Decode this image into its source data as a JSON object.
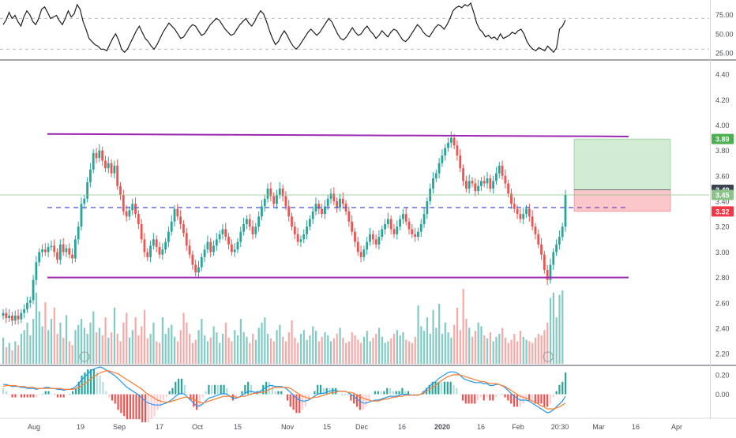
{
  "chart_data": [
    {
      "type": "line",
      "panel": "rsi",
      "ylim": [
        18,
        92
      ],
      "y_ticks": [
        "75.00",
        "50.00",
        "25.00"
      ],
      "y_tick_values": [
        75,
        50,
        25
      ],
      "reference_levels": [
        70,
        30
      ],
      "series": [
        {
          "values": [
            62,
            68,
            78,
            70,
            74,
            66,
            60,
            72,
            80,
            75,
            66,
            62,
            70,
            82,
            85,
            78,
            70,
            72,
            74,
            67,
            62,
            70,
            80,
            72,
            76,
            88,
            82,
            66,
            56,
            44,
            40,
            36,
            34,
            30,
            30,
            28,
            36,
            44,
            50,
            42,
            30,
            26,
            30,
            38,
            46,
            54,
            60,
            52,
            44,
            40,
            34,
            30,
            36,
            44,
            52,
            58,
            64,
            60,
            56,
            50,
            44,
            46,
            52,
            58,
            62,
            60,
            54,
            48,
            50,
            56,
            62,
            66,
            70,
            68,
            62,
            56,
            52,
            48,
            50,
            56,
            62,
            66,
            70,
            64,
            60,
            66,
            74,
            80,
            76,
            66,
            54,
            44,
            36,
            40,
            48,
            54,
            48,
            40,
            34,
            30,
            34,
            40,
            46,
            52,
            56,
            52,
            48,
            52,
            58,
            64,
            70,
            66,
            58,
            50,
            44,
            42,
            46,
            52,
            58,
            52,
            48,
            50,
            56,
            60,
            54,
            50,
            44,
            48,
            54,
            50,
            46,
            52,
            56,
            54,
            48,
            42,
            40,
            44,
            50,
            56,
            62,
            58,
            52,
            48,
            46,
            52,
            58,
            62,
            60,
            56,
            62,
            70,
            80,
            84,
            86,
            84,
            88,
            86,
            90,
            78,
            64,
            56,
            52,
            46,
            48,
            44,
            46,
            42,
            50,
            44,
            46,
            48,
            52,
            50,
            54,
            56,
            50,
            40,
            34,
            30,
            28,
            32,
            30,
            28,
            34,
            30,
            26,
            32,
            56,
            60,
            68
          ]
        }
      ]
    },
    {
      "type": "bar",
      "panel": "price",
      "ylim": [
        2.12,
        4.5
      ],
      "y_ticks": [
        "4.40",
        "4.20",
        "4.00",
        "3.80",
        "3.60",
        "3.40",
        "3.20",
        "3.00",
        "2.80",
        "2.60",
        "2.40",
        "2.20"
      ],
      "y_tick_values": [
        4.4,
        4.2,
        4.0,
        3.8,
        3.6,
        3.4,
        3.2,
        3.0,
        2.8,
        2.6,
        2.4,
        2.2
      ],
      "x_ticks": [
        "Aug",
        "19",
        "Sep",
        "17",
        "Oct",
        "15",
        "Nov",
        "15",
        "Dec",
        "16",
        "2020",
        "16",
        "Feb",
        "20:30",
        "Mar",
        "16",
        "Apr"
      ],
      "price_labels": [
        {
          "text": "3.89",
          "value": 3.89,
          "color": "#4caf50"
        },
        {
          "text": "3.49",
          "value": 3.49,
          "color": "#3d4451"
        },
        {
          "text": "3.45",
          "value": 3.45,
          "color": "#8bc48a"
        },
        {
          "text": "3.32",
          "value": 3.32,
          "color": "#f23645"
        }
      ],
      "channel": {
        "top": 3.93,
        "bottom": 2.8,
        "mid": 3.35
      },
      "position": {
        "entry": 3.49,
        "target": 3.89,
        "stop": 3.32
      },
      "last_price": 3.45,
      "up_color": "#26a69a",
      "down_color": "#ef5350",
      "close": [
        2.52,
        2.48,
        2.5,
        2.46,
        2.5,
        2.47,
        2.52,
        2.55,
        2.6,
        2.62,
        2.78,
        2.92,
        3.0,
        3.02,
        3.0,
        3.04,
        3.05,
        3.0,
        2.94,
        3.06,
        3.0,
        3.03,
        2.98,
        2.95,
        3.1,
        3.2,
        3.38,
        3.42,
        3.55,
        3.65,
        3.78,
        3.74,
        3.8,
        3.72,
        3.66,
        3.7,
        3.62,
        3.68,
        3.52,
        3.45,
        3.32,
        3.28,
        3.33,
        3.38,
        3.3,
        3.22,
        3.1,
        3.0,
        2.96,
        3.05,
        3.1,
        3.04,
        2.98,
        3.02,
        3.08,
        3.16,
        3.24,
        3.34,
        3.28,
        3.22,
        3.15,
        3.05,
        2.98,
        2.9,
        2.84,
        2.88,
        2.96,
        3.02,
        3.08,
        3.0,
        3.05,
        3.1,
        3.14,
        3.18,
        3.12,
        3.06,
        3.0,
        3.02,
        3.08,
        3.16,
        3.22,
        3.26,
        3.2,
        3.14,
        3.2,
        3.28,
        3.36,
        3.42,
        3.5,
        3.44,
        3.38,
        3.45,
        3.5,
        3.44,
        3.36,
        3.28,
        3.2,
        3.14,
        3.08,
        3.1,
        3.14,
        3.2,
        3.26,
        3.32,
        3.38,
        3.34,
        3.3,
        3.36,
        3.42,
        3.46,
        3.4,
        3.35,
        3.42,
        3.38,
        3.32,
        3.24,
        3.16,
        3.08,
        3.0,
        2.96,
        3.02,
        3.08,
        3.14,
        3.1,
        3.06,
        3.12,
        3.18,
        3.22,
        3.26,
        3.18,
        3.14,
        3.2,
        3.26,
        3.3,
        3.24,
        3.18,
        3.14,
        3.12,
        3.16,
        3.22,
        3.3,
        3.4,
        3.5,
        3.58,
        3.62,
        3.7,
        3.76,
        3.82,
        3.86,
        3.9,
        3.84,
        3.76,
        3.66,
        3.56,
        3.5,
        3.56,
        3.54,
        3.48,
        3.52,
        3.56,
        3.54,
        3.58,
        3.5,
        3.56,
        3.62,
        3.68,
        3.6,
        3.54,
        3.46,
        3.38,
        3.34,
        3.3,
        3.26,
        3.3,
        3.34,
        3.28,
        3.2,
        3.14,
        3.06,
        2.98,
        2.86,
        2.78,
        2.9,
        3.0,
        3.06,
        3.12,
        3.2,
        3.45
      ]
    },
    {
      "type": "bar",
      "panel": "volume",
      "values": [
        0.35,
        0.22,
        0.28,
        0.18,
        0.3,
        0.25,
        0.4,
        0.45,
        0.55,
        0.38,
        0.6,
        0.95,
        0.7,
        0.5,
        0.82,
        0.45,
        0.6,
        0.75,
        0.4,
        0.55,
        0.35,
        0.65,
        0.3,
        0.25,
        0.45,
        0.52,
        0.6,
        0.48,
        0.4,
        0.55,
        0.7,
        0.42,
        0.48,
        0.38,
        0.62,
        0.35,
        0.42,
        0.75,
        0.4,
        0.3,
        0.55,
        0.68,
        0.35,
        0.45,
        0.62,
        0.38,
        0.5,
        0.72,
        0.34,
        0.4,
        0.55,
        0.3,
        0.28,
        0.62,
        0.4,
        0.48,
        0.52,
        0.36,
        0.3,
        0.45,
        0.68,
        0.55,
        0.4,
        0.28,
        0.32,
        0.45,
        0.6,
        0.38,
        0.3,
        0.35,
        0.5,
        0.42,
        0.28,
        0.4,
        0.55,
        0.35,
        0.3,
        0.45,
        0.38,
        0.6,
        0.42,
        0.36,
        0.28,
        0.4,
        0.32,
        0.48,
        0.55,
        0.62,
        0.4,
        0.34,
        0.3,
        0.45,
        0.52,
        0.36,
        0.3,
        0.42,
        0.58,
        0.35,
        0.28,
        0.4,
        0.45,
        0.32,
        0.38,
        0.5,
        0.44,
        0.3,
        0.36,
        0.42,
        0.38,
        0.3,
        0.34,
        0.4,
        0.48,
        0.35,
        0.28,
        0.3,
        0.42,
        0.38,
        0.32,
        0.28,
        0.36,
        0.44,
        0.3,
        0.35,
        0.4,
        0.48,
        0.36,
        0.28,
        0.3,
        0.34,
        0.4,
        0.45,
        0.38,
        0.42,
        0.32,
        0.3,
        0.28,
        0.36,
        0.78,
        0.5,
        0.44,
        0.62,
        0.4,
        0.72,
        0.48,
        0.8,
        0.4,
        0.55,
        0.42,
        0.35,
        0.52,
        0.75,
        0.45,
        1.0,
        0.6,
        0.48,
        0.36,
        0.44,
        0.55,
        0.5,
        0.38,
        0.34,
        0.42,
        0.3,
        0.36,
        0.4,
        0.48,
        0.35,
        0.28,
        0.32,
        0.4,
        0.3,
        0.44,
        0.36,
        0.32,
        0.3,
        0.28,
        0.35,
        0.4,
        0.38,
        0.45,
        0.55,
        0.88,
        0.95,
        0.62,
        0.92,
        0.98
      ]
    },
    {
      "type": "line",
      "panel": "macd",
      "ylim": [
        -0.23,
        0.28
      ],
      "y_ticks": [
        "0.20",
        "0.00"
      ],
      "y_tick_values": [
        0.2,
        0.0
      ],
      "series": [
        {
          "color": "#2196f3",
          "values": [
            0.1,
            0.1,
            0.09,
            0.08,
            0.08,
            0.08,
            0.07,
            0.07,
            0.06,
            0.06,
            0.06,
            0.05,
            0.06,
            0.06,
            0.07,
            0.07,
            0.06,
            0.06,
            0.05,
            0.05,
            0.04,
            0.05,
            0.05,
            0.06,
            0.08,
            0.11,
            0.15,
            0.18,
            0.21,
            0.24,
            0.26,
            0.27,
            0.28,
            0.27,
            0.25,
            0.23,
            0.21,
            0.19,
            0.16,
            0.13,
            0.1,
            0.07,
            0.05,
            0.03,
            0.01,
            -0.01,
            -0.04,
            -0.07,
            -0.09,
            -0.1,
            -0.11,
            -0.11,
            -0.11,
            -0.1,
            -0.09,
            -0.07,
            -0.05,
            -0.02,
            0.0,
            0.01,
            0.0,
            -0.03,
            -0.06,
            -0.09,
            -0.12,
            -0.12,
            -0.1,
            -0.07,
            -0.04,
            -0.03,
            -0.02,
            -0.01,
            0.0,
            0.01,
            0.0,
            -0.02,
            -0.04,
            -0.04,
            -0.03,
            -0.01,
            0.01,
            0.03,
            0.03,
            0.02,
            0.02,
            0.03,
            0.05,
            0.07,
            0.09,
            0.09,
            0.08,
            0.08,
            0.08,
            0.07,
            0.05,
            0.02,
            -0.01,
            -0.04,
            -0.06,
            -0.07,
            -0.07,
            -0.06,
            -0.04,
            -0.02,
            0.0,
            0.01,
            0.01,
            0.02,
            0.03,
            0.04,
            0.04,
            0.03,
            0.03,
            0.03,
            0.02,
            0.0,
            -0.02,
            -0.05,
            -0.07,
            -0.09,
            -0.09,
            -0.08,
            -0.07,
            -0.06,
            -0.06,
            -0.05,
            -0.04,
            -0.03,
            -0.02,
            -0.02,
            -0.02,
            -0.01,
            0.0,
            0.0,
            0.0,
            -0.01,
            -0.01,
            -0.01,
            0.0,
            0.02,
            0.05,
            0.08,
            0.11,
            0.13,
            0.16,
            0.18,
            0.2,
            0.22,
            0.23,
            0.23,
            0.22,
            0.2,
            0.17,
            0.15,
            0.14,
            0.13,
            0.12,
            0.12,
            0.12,
            0.11,
            0.11,
            0.09,
            0.09,
            0.1,
            0.1,
            0.09,
            0.07,
            0.04,
            0.01,
            -0.02,
            -0.04,
            -0.06,
            -0.06,
            -0.06,
            -0.07,
            -0.09,
            -0.11,
            -0.13,
            -0.15,
            -0.17,
            -0.19,
            -0.18,
            -0.16,
            -0.13,
            -0.1,
            -0.07,
            -0.02
          ]
        },
        {
          "color": "#ff7a2f",
          "values": [
            0.08,
            0.09,
            0.09,
            0.09,
            0.09,
            0.08,
            0.08,
            0.08,
            0.07,
            0.07,
            0.07,
            0.06,
            0.06,
            0.06,
            0.06,
            0.06,
            0.06,
            0.06,
            0.06,
            0.06,
            0.05,
            0.05,
            0.05,
            0.05,
            0.06,
            0.07,
            0.09,
            0.11,
            0.13,
            0.16,
            0.18,
            0.2,
            0.22,
            0.23,
            0.24,
            0.24,
            0.23,
            0.22,
            0.21,
            0.19,
            0.17,
            0.15,
            0.13,
            0.11,
            0.09,
            0.07,
            0.05,
            0.02,
            0.0,
            -0.02,
            -0.04,
            -0.06,
            -0.07,
            -0.08,
            -0.08,
            -0.08,
            -0.07,
            -0.06,
            -0.05,
            -0.04,
            -0.03,
            -0.03,
            -0.04,
            -0.05,
            -0.07,
            -0.08,
            -0.09,
            -0.08,
            -0.07,
            -0.06,
            -0.05,
            -0.04,
            -0.03,
            -0.02,
            -0.02,
            -0.02,
            -0.02,
            -0.03,
            -0.03,
            -0.02,
            -0.02,
            -0.01,
            0.0,
            0.01,
            0.01,
            0.02,
            0.02,
            0.03,
            0.05,
            0.06,
            0.07,
            0.07,
            0.07,
            0.07,
            0.07,
            0.06,
            0.04,
            0.02,
            0.0,
            -0.02,
            -0.03,
            -0.04,
            -0.04,
            -0.03,
            -0.03,
            -0.02,
            -0.01,
            0.0,
            0.01,
            0.02,
            0.02,
            0.03,
            0.03,
            0.03,
            0.02,
            0.02,
            0.01,
            -0.01,
            -0.02,
            -0.04,
            -0.05,
            -0.06,
            -0.07,
            -0.07,
            -0.07,
            -0.06,
            -0.05,
            -0.05,
            -0.04,
            -0.03,
            -0.03,
            -0.02,
            -0.02,
            -0.01,
            -0.01,
            -0.01,
            -0.01,
            -0.01,
            0.0,
            0.01,
            0.03,
            0.05,
            0.07,
            0.09,
            0.12,
            0.14,
            0.16,
            0.18,
            0.19,
            0.2,
            0.2,
            0.2,
            0.19,
            0.18,
            0.17,
            0.16,
            0.15,
            0.14,
            0.13,
            0.13,
            0.12,
            0.11,
            0.11,
            0.11,
            0.1,
            0.09,
            0.08,
            0.06,
            0.04,
            0.02,
            0.0,
            -0.02,
            -0.03,
            -0.04,
            -0.05,
            -0.07,
            -0.08,
            -0.1,
            -0.12,
            -0.13,
            -0.15,
            -0.15,
            -0.15,
            -0.14,
            -0.13,
            -0.11,
            -0.09
          ]
        }
      ]
    }
  ]
}
